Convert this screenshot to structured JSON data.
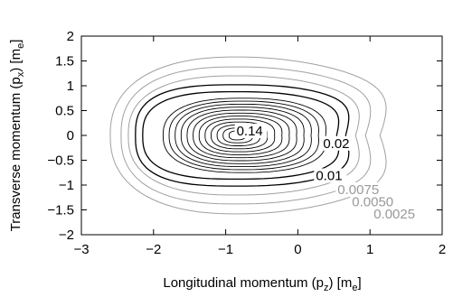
{
  "chart_data": {
    "type": "contour",
    "xlabel": "Longitudinal momentum (p",
    "xlabel_sub": "z",
    "xlabel_mid": ") [m",
    "xlabel_sub2": "e",
    "xlabel_end": "]",
    "ylabel": "Transverse momentum (p",
    "ylabel_sub": "x",
    "ylabel_mid": ") [m",
    "ylabel_sub2": "e",
    "ylabel_end": "]",
    "xlim": [
      -3,
      2
    ],
    "ylim": [
      -2,
      2
    ],
    "xticks": [
      -3,
      -2,
      -1,
      0,
      1,
      2
    ],
    "yticks": [
      -2,
      -1.5,
      -1,
      -0.5,
      0,
      0.5,
      1,
      1.5,
      2
    ],
    "xtick_labels": [
      "−3",
      "−2",
      "−1",
      "0",
      "1",
      "2"
    ],
    "ytick_labels": [
      "−2",
      "−1.5",
      "−1",
      "−0.5",
      "0",
      "0.5",
      "1",
      "1.5",
      "2"
    ],
    "peak": {
      "x": -0.85,
      "y": 0.0
    },
    "grid": false,
    "contour_levels_light": [
      0.0025,
      0.005,
      0.0075
    ],
    "contour_levels_dark": [
      0.01,
      0.02
    ],
    "contour_levels_inner_count": 12,
    "labels": [
      {
        "text": "0.14",
        "x": -0.85,
        "y": 0.0,
        "color": "#000000"
      },
      {
        "text": "0.02",
        "x": 0.35,
        "y": -0.25,
        "color": "#000000"
      },
      {
        "text": "0.01",
        "x": 0.25,
        "y": -0.9,
        "color": "#000000"
      },
      {
        "text": "0.0075",
        "x": 0.55,
        "y": -1.18,
        "color": "#999999"
      },
      {
        "text": "0.0050",
        "x": 0.75,
        "y": -1.43,
        "color": "#999999"
      },
      {
        "text": "0.0025",
        "x": 1.05,
        "y": -1.67,
        "color": "#999999"
      }
    ],
    "colors": {
      "light": "#a0a0a0",
      "dark": "#000000",
      "inner": "#000000"
    }
  }
}
